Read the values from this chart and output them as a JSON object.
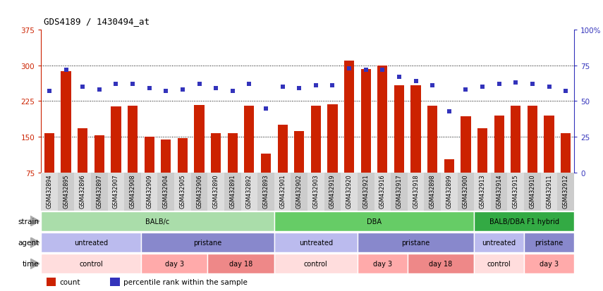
{
  "title": "GDS4189 / 1430494_at",
  "samples": [
    "GSM432894",
    "GSM432895",
    "GSM432896",
    "GSM432897",
    "GSM432907",
    "GSM432908",
    "GSM432909",
    "GSM432904",
    "GSM432905",
    "GSM432906",
    "GSM432890",
    "GSM432891",
    "GSM432892",
    "GSM432893",
    "GSM432901",
    "GSM432902",
    "GSM432903",
    "GSM432919",
    "GSM432920",
    "GSM432921",
    "GSM432916",
    "GSM432917",
    "GSM432918",
    "GSM432898",
    "GSM432899",
    "GSM432900",
    "GSM432913",
    "GSM432914",
    "GSM432915",
    "GSM432910",
    "GSM432911",
    "GSM432912"
  ],
  "bar_values": [
    158,
    288,
    168,
    153,
    214,
    216,
    150,
    144,
    148,
    217,
    157,
    157,
    215,
    115,
    175,
    162,
    215,
    218,
    310,
    293,
    300,
    258,
    258,
    215,
    103,
    193,
    168,
    195,
    215,
    215,
    195,
    158
  ],
  "dot_pct": [
    57,
    72,
    60,
    58,
    62,
    62,
    59,
    57,
    58,
    62,
    59,
    57,
    62,
    45,
    60,
    59,
    61,
    61,
    73,
    72,
    72,
    67,
    64,
    61,
    43,
    58,
    60,
    62,
    63,
    62,
    60,
    57
  ],
  "bar_color": "#cc2200",
  "dot_color": "#3333bb",
  "ylim_left": [
    75,
    375
  ],
  "ylim_right": [
    0,
    100
  ],
  "yticks_left": [
    75,
    150,
    225,
    300,
    375
  ],
  "yticks_right": [
    0,
    25,
    50,
    75,
    100
  ],
  "grid_values": [
    150,
    225,
    300
  ],
  "strain_groups": [
    {
      "label": "BALB/c",
      "start": 0,
      "end": 14,
      "color": "#aaddaa"
    },
    {
      "label": "DBA",
      "start": 14,
      "end": 26,
      "color": "#66cc66"
    },
    {
      "label": "BALB/DBA F1 hybrid",
      "start": 26,
      "end": 32,
      "color": "#33aa44"
    }
  ],
  "agent_groups": [
    {
      "label": "untreated",
      "start": 0,
      "end": 6,
      "color": "#bbbbee"
    },
    {
      "label": "pristane",
      "start": 6,
      "end": 14,
      "color": "#8888cc"
    },
    {
      "label": "untreated",
      "start": 14,
      "end": 19,
      "color": "#bbbbee"
    },
    {
      "label": "pristane",
      "start": 19,
      "end": 26,
      "color": "#8888cc"
    },
    {
      "label": "untreated",
      "start": 26,
      "end": 29,
      "color": "#bbbbee"
    },
    {
      "label": "pristane",
      "start": 29,
      "end": 32,
      "color": "#8888cc"
    }
  ],
  "time_groups": [
    {
      "label": "control",
      "start": 0,
      "end": 6,
      "color": "#ffdddd"
    },
    {
      "label": "day 3",
      "start": 6,
      "end": 10,
      "color": "#ffaaaa"
    },
    {
      "label": "day 18",
      "start": 10,
      "end": 14,
      "color": "#ee8888"
    },
    {
      "label": "control",
      "start": 14,
      "end": 19,
      "color": "#ffdddd"
    },
    {
      "label": "day 3",
      "start": 19,
      "end": 22,
      "color": "#ffaaaa"
    },
    {
      "label": "day 18",
      "start": 22,
      "end": 26,
      "color": "#ee8888"
    },
    {
      "label": "control",
      "start": 26,
      "end": 29,
      "color": "#ffdddd"
    },
    {
      "label": "day 3",
      "start": 29,
      "end": 32,
      "color": "#ffaaaa"
    }
  ],
  "legend_labels": [
    "count",
    "percentile rank within the sample"
  ],
  "legend_colors": [
    "#cc2200",
    "#3333bb"
  ]
}
